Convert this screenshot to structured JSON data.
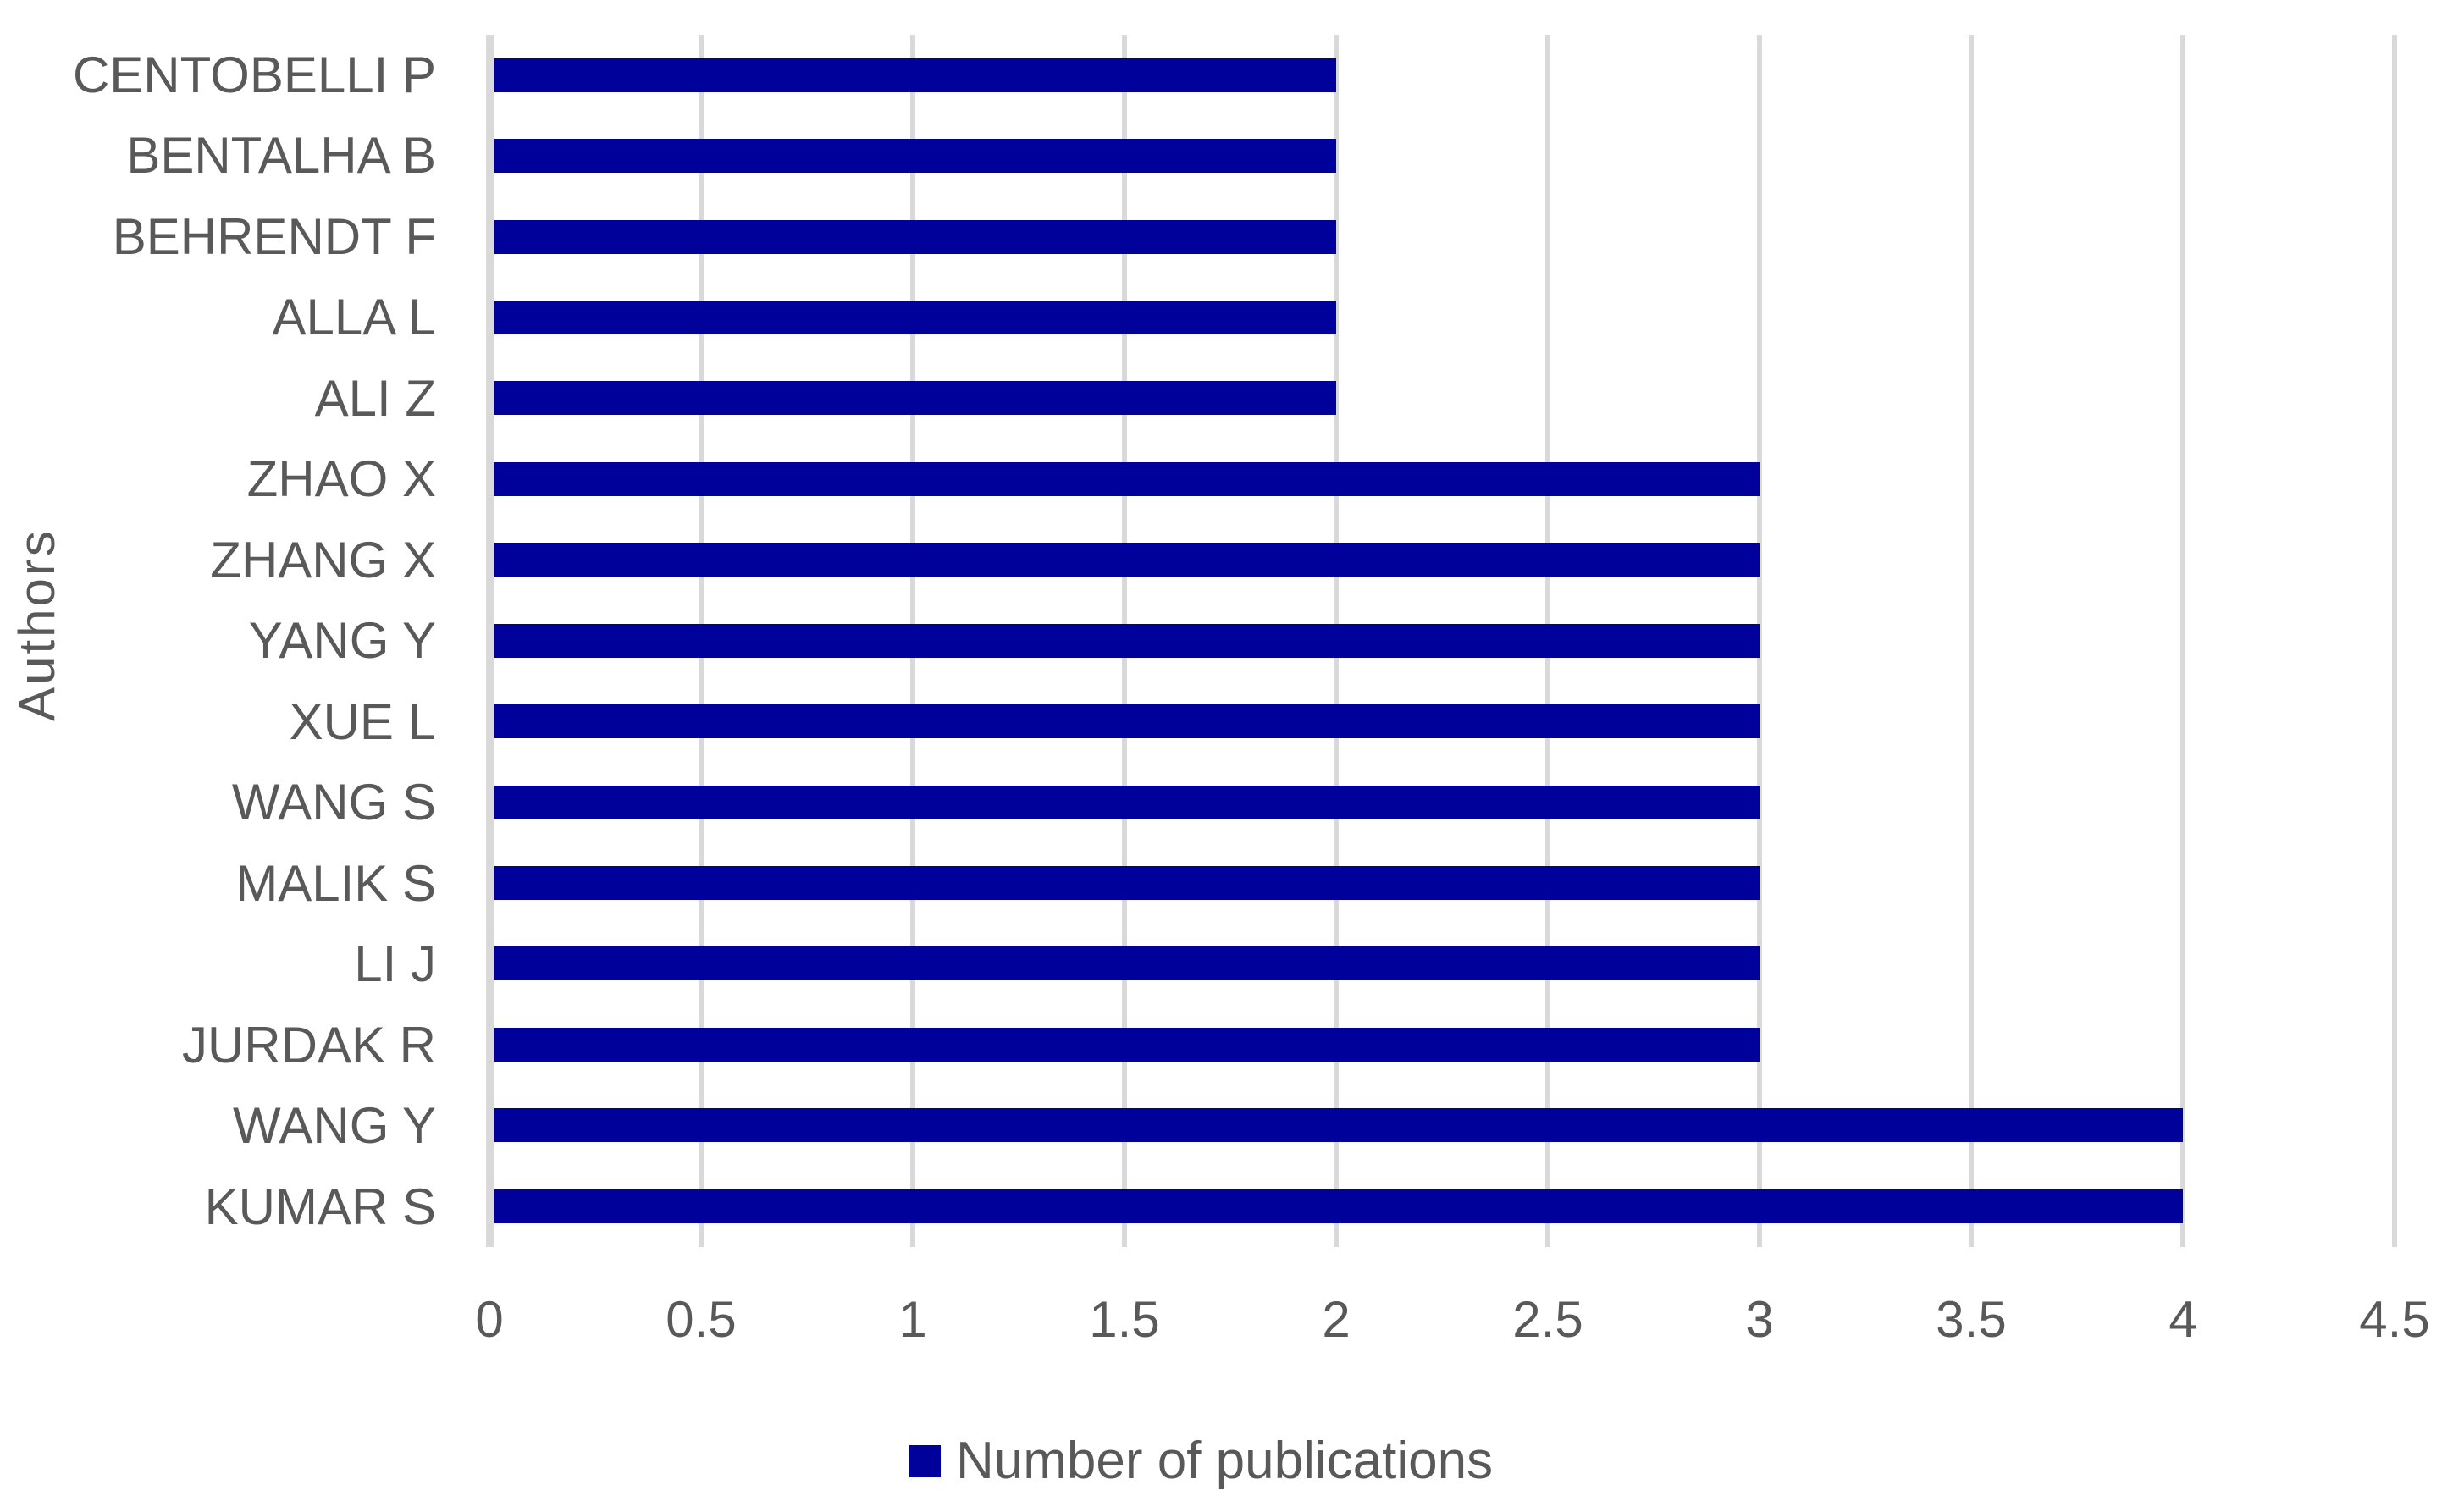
{
  "chart_data": {
    "type": "bar",
    "orientation": "horizontal",
    "title": "",
    "xlabel": "",
    "ylabel": "Authors",
    "categories": [
      "CENTOBELLI P",
      "BENTALHA B",
      "BEHRENDT F",
      "ALLA L",
      "ALI Z",
      "ZHAO X",
      "ZHANG X",
      "YANG Y",
      "XUE L",
      "WANG S",
      "MALIK S",
      "LI J",
      "JURDAK R",
      "WANG Y",
      "KUMAR S"
    ],
    "values": [
      2,
      2,
      2,
      2,
      2,
      3,
      3,
      3,
      3,
      3,
      3,
      3,
      3,
      4,
      4
    ],
    "series": [
      {
        "name": "Number of publications",
        "values": [
          2,
          2,
          2,
          2,
          2,
          3,
          3,
          3,
          3,
          3,
          3,
          3,
          3,
          4,
          4
        ]
      }
    ],
    "legend": [
      "Number of publications"
    ],
    "legend_position": "bottom",
    "xlim": [
      0,
      4.5
    ],
    "xticks": [
      0,
      0.5,
      1,
      1.5,
      2,
      2.5,
      3,
      3.5,
      4,
      4.5
    ],
    "grid": true,
    "colors": {
      "bar": "#00009b",
      "gridline": "#d9d9d9",
      "text": "#595959",
      "background": "#ffffff"
    }
  }
}
